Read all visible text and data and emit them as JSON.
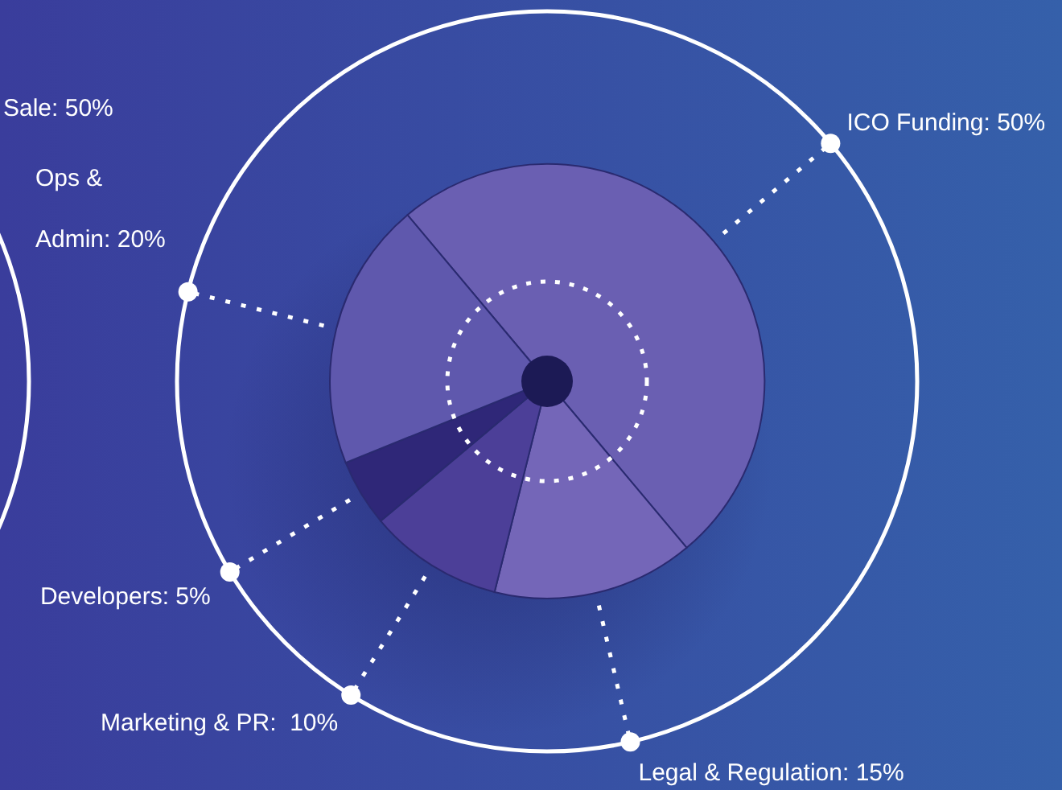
{
  "chart_data": {
    "type": "pie",
    "categories": [
      "ICO Funding: 50%",
      "Legal & Regulation: 15%",
      "Marketing & PR:  10%",
      "Developers: 5%",
      "Ops & Admin: 20%"
    ],
    "values": [
      50,
      15,
      10,
      5,
      20
    ],
    "colors": [
      "#6a5fb2",
      "#7466b8",
      "#4c3f98",
      "#2f2778",
      "#5f58ad"
    ],
    "annotations": [
      "Sale: 50%"
    ]
  }
}
